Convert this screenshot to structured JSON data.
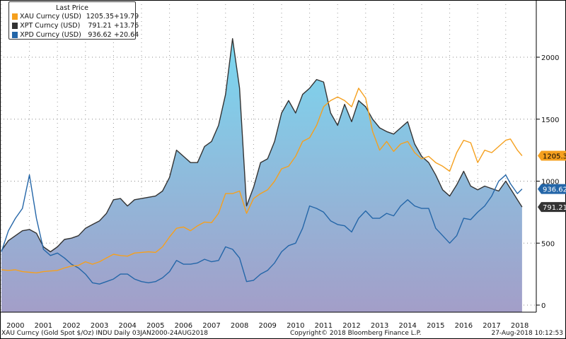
{
  "chart_data": {
    "type": "line",
    "legend_title": "Last Price",
    "legend_placement": "top-left",
    "x": [
      "2000-01",
      "2000-04",
      "2000-07",
      "2000-10",
      "2001-01",
      "2001-04",
      "2001-07",
      "2001-10",
      "2002-01",
      "2002-04",
      "2002-07",
      "2002-10",
      "2003-01",
      "2003-04",
      "2003-07",
      "2003-10",
      "2004-01",
      "2004-04",
      "2004-07",
      "2004-10",
      "2005-01",
      "2005-04",
      "2005-07",
      "2005-10",
      "2006-01",
      "2006-04",
      "2006-07",
      "2006-10",
      "2007-01",
      "2007-04",
      "2007-07",
      "2007-10",
      "2008-01",
      "2008-04",
      "2008-07",
      "2008-10",
      "2009-01",
      "2009-04",
      "2009-07",
      "2009-10",
      "2010-01",
      "2010-04",
      "2010-07",
      "2010-10",
      "2011-01",
      "2011-04",
      "2011-07",
      "2011-10",
      "2012-01",
      "2012-04",
      "2012-07",
      "2012-10",
      "2013-01",
      "2013-04",
      "2013-07",
      "2013-10",
      "2014-01",
      "2014-04",
      "2014-07",
      "2014-10",
      "2015-01",
      "2015-04",
      "2015-07",
      "2015-10",
      "2016-01",
      "2016-04",
      "2016-07",
      "2016-10",
      "2017-01",
      "2017-04",
      "2017-07",
      "2017-10",
      "2018-01",
      "2018-03",
      "2018-06",
      "2018-08"
    ],
    "series": [
      {
        "name": "XAU Curncy (USD)",
        "last": "1205.35",
        "change": "+19.79",
        "color": "#f5a01e",
        "values": [
          285,
          280,
          285,
          270,
          265,
          260,
          270,
          275,
          280,
          300,
          315,
          320,
          350,
          330,
          350,
          380,
          410,
          400,
          395,
          420,
          425,
          430,
          425,
          470,
          550,
          620,
          630,
          600,
          640,
          670,
          665,
          740,
          900,
          900,
          920,
          740,
          860,
          900,
          930,
          1000,
          1100,
          1120,
          1200,
          1320,
          1350,
          1450,
          1600,
          1650,
          1680,
          1650,
          1600,
          1750,
          1670,
          1400,
          1250,
          1320,
          1240,
          1300,
          1320,
          1230,
          1180,
          1200,
          1150,
          1120,
          1080,
          1230,
          1330,
          1310,
          1150,
          1250,
          1230,
          1280,
          1330,
          1340,
          1250,
          1205.35
        ]
      },
      {
        "name": "XPT Curncy (USD)",
        "last": "791.21",
        "change": "+13.76",
        "color": "#333333",
        "values": [
          440,
          520,
          560,
          600,
          610,
          580,
          470,
          430,
          470,
          530,
          540,
          560,
          620,
          650,
          680,
          740,
          850,
          860,
          800,
          850,
          860,
          870,
          880,
          920,
          1030,
          1250,
          1200,
          1150,
          1150,
          1280,
          1320,
          1450,
          1700,
          2150,
          1750,
          800,
          950,
          1150,
          1180,
          1320,
          1550,
          1650,
          1550,
          1700,
          1750,
          1820,
          1800,
          1550,
          1450,
          1620,
          1480,
          1650,
          1600,
          1500,
          1430,
          1400,
          1380,
          1430,
          1480,
          1300,
          1200,
          1150,
          1050,
          930,
          880,
          970,
          1080,
          960,
          930,
          960,
          940,
          920,
          1000,
          940,
          850,
          791.21
        ]
      },
      {
        "name": "XPD Curncy (USD)",
        "last": "936.62",
        "change": "+20.64",
        "color": "#2466a8",
        "values": [
          430,
          600,
          700,
          780,
          1050,
          700,
          450,
          400,
          420,
          380,
          330,
          300,
          250,
          180,
          170,
          190,
          210,
          250,
          250,
          210,
          190,
          180,
          190,
          220,
          270,
          360,
          330,
          330,
          340,
          370,
          350,
          360,
          470,
          450,
          380,
          190,
          200,
          250,
          280,
          340,
          430,
          480,
          500,
          620,
          800,
          780,
          750,
          680,
          650,
          640,
          590,
          700,
          760,
          700,
          700,
          740,
          720,
          800,
          850,
          800,
          780,
          780,
          620,
          560,
          500,
          560,
          700,
          690,
          750,
          800,
          880,
          1000,
          1050,
          980,
          900,
          936.62
        ]
      }
    ],
    "x_tick_labels": [
      "2000",
      "2001",
      "2002",
      "2003",
      "2004",
      "2005",
      "2006",
      "2007",
      "2008",
      "2009",
      "2010",
      "2011",
      "2012",
      "2013",
      "2014",
      "2015",
      "2016",
      "2017",
      "2018"
    ],
    "y_ticks": [
      0,
      500,
      1000,
      1500,
      2000
    ],
    "y_tick_labels": [
      "0",
      "500",
      "1000",
      "1500",
      "2000"
    ],
    "ylim": [
      -50,
      2500
    ],
    "grid": true,
    "area_fill_series": "XPT Curncy (USD)"
  },
  "footer": {
    "left": "XAU Curncy (Gold Spot  $/Oz) INDU  Daily 03JAN2000-24AUG2018",
    "center": "Copyright© 2018 Bloomberg Finance L.P.",
    "right": "27-Aug-2018 10:12:53"
  }
}
